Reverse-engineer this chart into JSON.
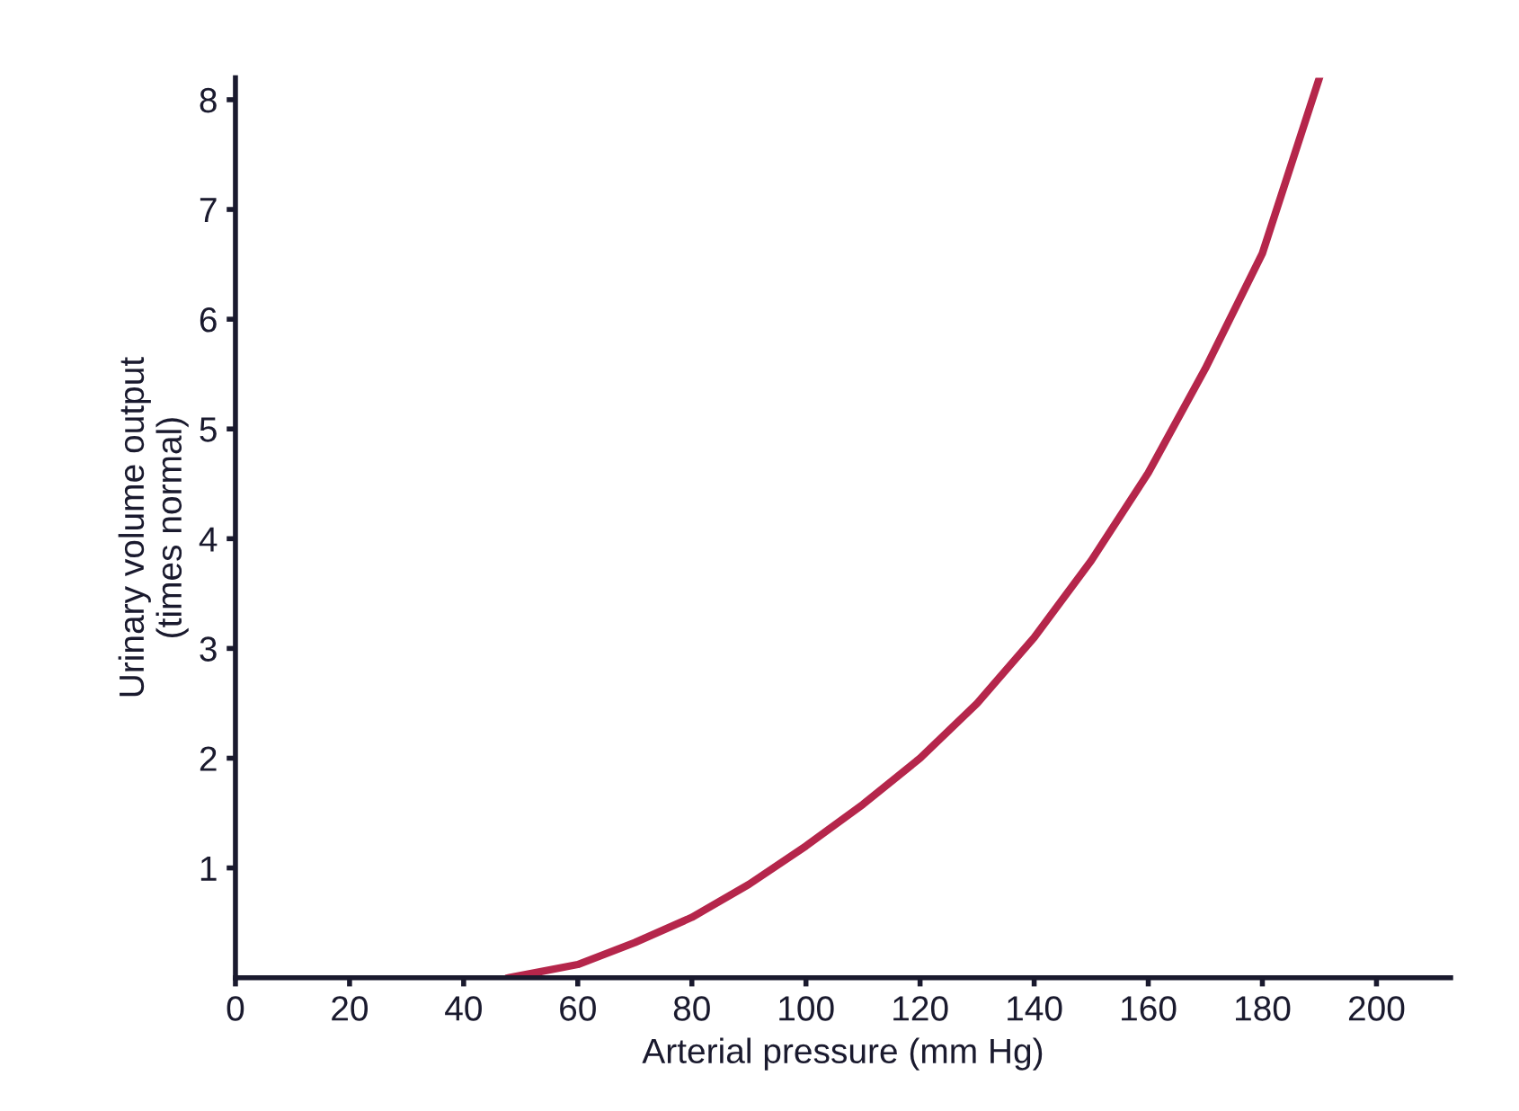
{
  "chart_data": {
    "type": "line",
    "xlabel": "Arterial pressure (mm Hg)",
    "ylabel": "Urinary volume output\n(times normal)",
    "x": [
      48,
      60,
      70,
      80,
      90,
      100,
      110,
      120,
      130,
      140,
      150,
      160,
      170,
      180,
      190
    ],
    "series": [
      {
        "color": "#b5264b",
        "values": [
          0,
          0.12,
          0.32,
          0.55,
          0.85,
          1.2,
          1.58,
          2.0,
          2.5,
          3.1,
          3.8,
          4.6,
          5.55,
          6.6,
          8.2
        ]
      }
    ],
    "xlim": [
      0,
      213
    ],
    "ylim": [
      0,
      8.2
    ],
    "xticks": [
      0,
      20,
      40,
      60,
      80,
      100,
      120,
      140,
      160,
      180,
      200
    ],
    "yticks": [
      1,
      2,
      3,
      4,
      5,
      6,
      7,
      8
    ],
    "grid": false,
    "marker": "none",
    "line_style": "solid"
  }
}
